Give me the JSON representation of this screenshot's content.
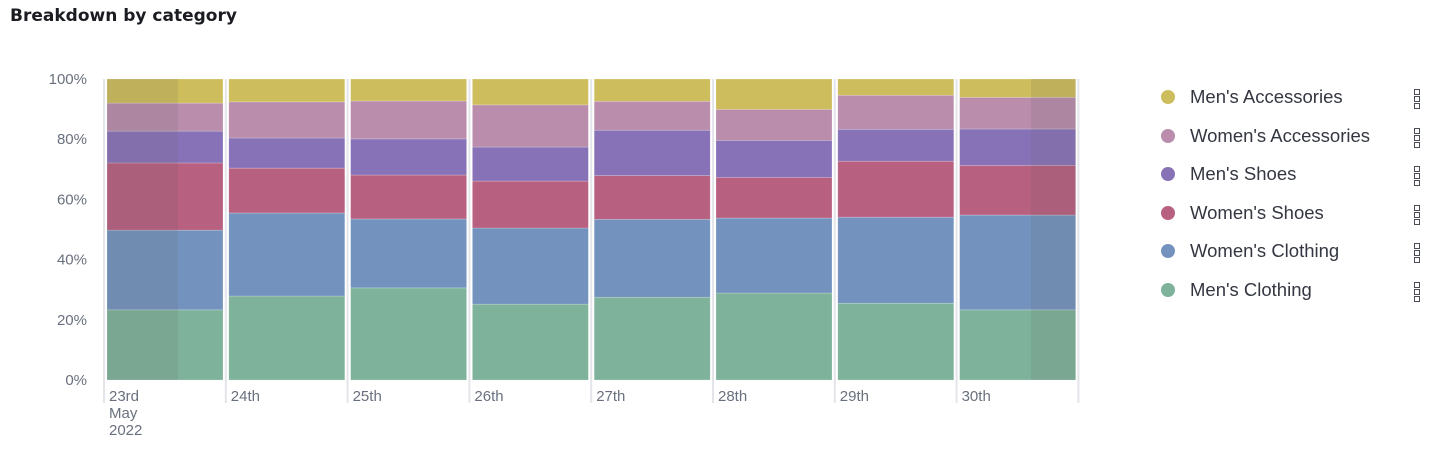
{
  "title": "Breakdown by category",
  "chart_data": {
    "type": "bar",
    "stacked": "percent",
    "title": "Breakdown by category",
    "categories": [
      "23rd",
      "24th",
      "25th",
      "26th",
      "27th",
      "28th",
      "29th",
      "30th"
    ],
    "x_sub_label": [
      "May",
      "2022"
    ],
    "yticks": [
      "0%",
      "20%",
      "40%",
      "60%",
      "80%",
      "100%"
    ],
    "ylim": [
      0,
      100
    ],
    "legend_position": "right",
    "series": [
      {
        "name": "Men's Clothing",
        "color": "#7eb29a",
        "values": [
          23.3,
          27.9,
          30.6,
          25.2,
          27.5,
          28.9,
          25.5,
          23.3
        ]
      },
      {
        "name": "Women's Clothing",
        "color": "#7393be",
        "values": [
          26.5,
          27.6,
          22.9,
          25.3,
          25.9,
          24.9,
          28.6,
          31.5
        ]
      },
      {
        "name": "Women's Shoes",
        "color": "#b86080",
        "values": [
          22.3,
          14.9,
          14.6,
          15.6,
          14.5,
          13.5,
          18.6,
          16.5
        ]
      },
      {
        "name": "Men's Shoes",
        "color": "#8872b7",
        "values": [
          10.6,
          10.0,
          12.0,
          11.3,
          15.1,
          12.3,
          10.6,
          12.1
        ]
      },
      {
        "name": "Women's Accessories",
        "color": "#b98dab",
        "values": [
          9.3,
          12.0,
          12.6,
          14.0,
          9.6,
          10.3,
          11.3,
          10.5
        ]
      },
      {
        "name": "Men's Accessories",
        "color": "#cdbd5c",
        "values": [
          8.0,
          7.6,
          7.3,
          8.6,
          7.4,
          10.1,
          5.4,
          6.1
        ]
      }
    ]
  },
  "legend": [
    {
      "label": "Men's Accessories",
      "color": "#cdbd5c"
    },
    {
      "label": "Women's Accessories",
      "color": "#b98dab"
    },
    {
      "label": "Men's Shoes",
      "color": "#8872b7"
    },
    {
      "label": "Women's Shoes",
      "color": "#b86080"
    },
    {
      "label": "Women's Clothing",
      "color": "#7393be"
    },
    {
      "label": "Men's Clothing",
      "color": "#7eb29a"
    }
  ]
}
